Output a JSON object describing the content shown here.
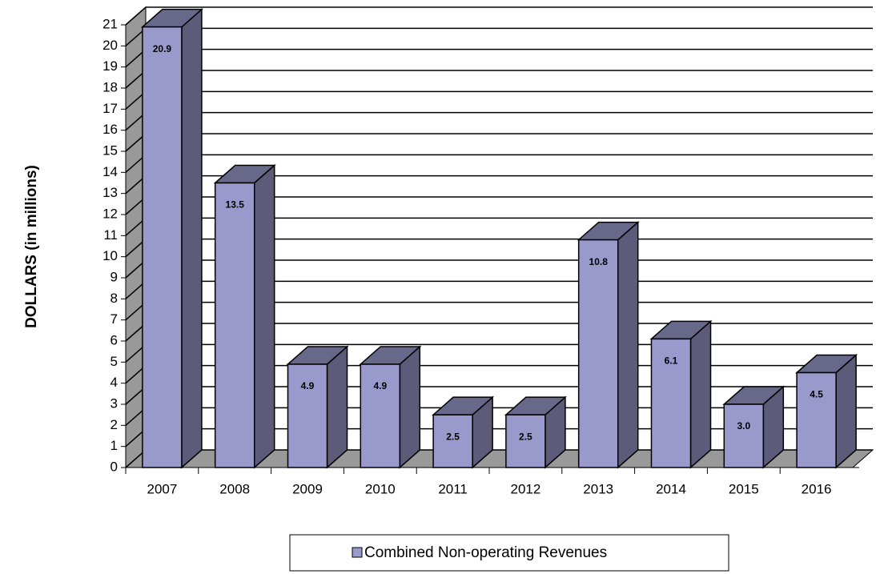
{
  "chart_data": {
    "type": "bar3d",
    "y_axis_label": "DOLLARS (in millions)",
    "categories": [
      "2007",
      "2008",
      "2009",
      "2010",
      "2011",
      "2012",
      "2013",
      "2014",
      "2015",
      "2016"
    ],
    "series": [
      {
        "name": "Combined Non-operating Revenues",
        "color": "#9999cc",
        "values": [
          20.9,
          13.5,
          4.9,
          4.9,
          2.5,
          2.5,
          10.8,
          6.1,
          3.0,
          4.5
        ],
        "value_labels": [
          "20.9",
          "13.5",
          "4.9",
          "4.9",
          "2.5",
          "2.5",
          "10.8",
          "6.1",
          "3.0",
          "4.5"
        ]
      }
    ],
    "ylim": [
      0,
      21
    ],
    "yticks": [
      0,
      1,
      2,
      3,
      4,
      5,
      6,
      7,
      8,
      9,
      10,
      11,
      12,
      13,
      14,
      15,
      16,
      17,
      18,
      19,
      20,
      21
    ],
    "grid": true,
    "legend": "bottom"
  }
}
